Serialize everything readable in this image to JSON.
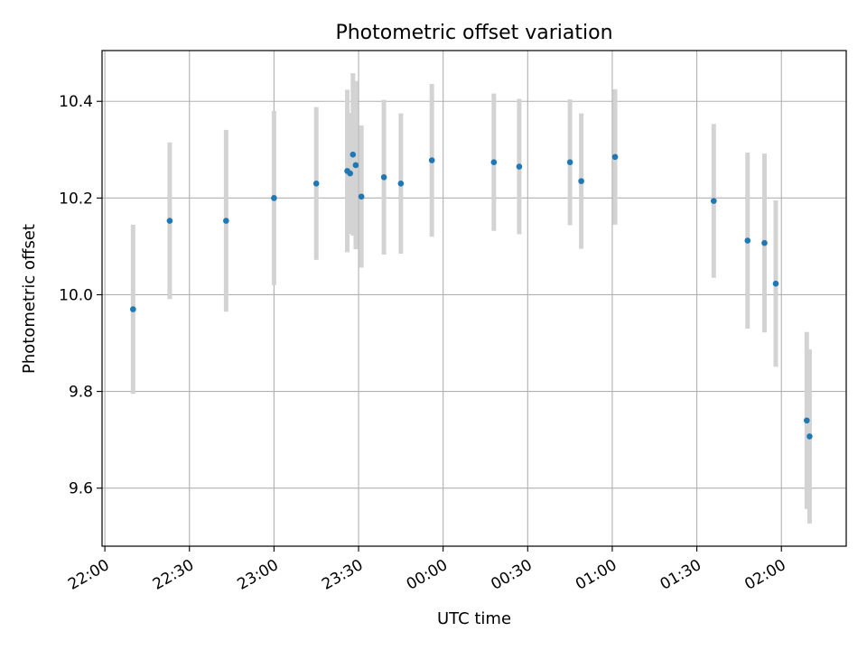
{
  "chart_data": {
    "type": "scatter",
    "title": "Photometric offset variation",
    "xlabel": "UTC time",
    "ylabel": "Photometric offset",
    "grid": true,
    "x_axis_type": "time",
    "xlim": [
      "21:59",
      "02:23"
    ],
    "ylim": [
      9.48,
      10.505
    ],
    "x_ticks": [
      "22:00",
      "22:30",
      "23:00",
      "23:30",
      "00:00",
      "00:30",
      "01:00",
      "01:30",
      "02:00"
    ],
    "y_ticks": [
      9.6,
      9.8,
      10.0,
      10.2,
      10.4
    ],
    "y_tick_labels": [
      "9.6",
      "9.8",
      "10.0",
      "10.2",
      "10.4"
    ],
    "colors": {
      "marker": "#1f77b4",
      "errorbar": "#d3d3d3",
      "grid": "#b0b0b0"
    },
    "points": [
      {
        "x": "22:10",
        "y": 9.97,
        "yerr": 0.175
      },
      {
        "x": "22:23",
        "y": 10.153,
        "yerr": 0.162
      },
      {
        "x": "22:43",
        "y": 10.153,
        "yerr": 0.188
      },
      {
        "x": "23:00",
        "y": 10.2,
        "yerr": 0.18
      },
      {
        "x": "23:15",
        "y": 10.23,
        "yerr": 0.158
      },
      {
        "x": "23:26",
        "y": 10.256,
        "yerr": 0.168
      },
      {
        "x": "23:27",
        "y": 10.251,
        "yerr": 0.125
      },
      {
        "x": "23:28",
        "y": 10.29,
        "yerr": 0.168
      },
      {
        "x": "23:29",
        "y": 10.268,
        "yerr": 0.174
      },
      {
        "x": "23:31",
        "y": 10.203,
        "yerr": 0.147
      },
      {
        "x": "23:39",
        "y": 10.243,
        "yerr": 0.16
      },
      {
        "x": "23:45",
        "y": 10.23,
        "yerr": 0.145
      },
      {
        "x": "23:56",
        "y": 10.278,
        "yerr": 0.158
      },
      {
        "x": "00:18",
        "y": 10.274,
        "yerr": 0.142
      },
      {
        "x": "00:27",
        "y": 10.265,
        "yerr": 0.14
      },
      {
        "x": "00:45",
        "y": 10.274,
        "yerr": 0.13
      },
      {
        "x": "00:49",
        "y": 10.235,
        "yerr": 0.14
      },
      {
        "x": "01:01",
        "y": 10.285,
        "yerr": 0.14
      },
      {
        "x": "01:36",
        "y": 10.194,
        "yerr": 0.159
      },
      {
        "x": "01:48",
        "y": 10.112,
        "yerr": 0.182
      },
      {
        "x": "01:54",
        "y": 10.107,
        "yerr": 0.185
      },
      {
        "x": "01:58",
        "y": 10.023,
        "yerr": 0.172
      },
      {
        "x": "02:09",
        "y": 9.74,
        "yerr": 0.183
      },
      {
        "x": "02:10",
        "y": 9.707,
        "yerr": 0.18
      }
    ]
  }
}
